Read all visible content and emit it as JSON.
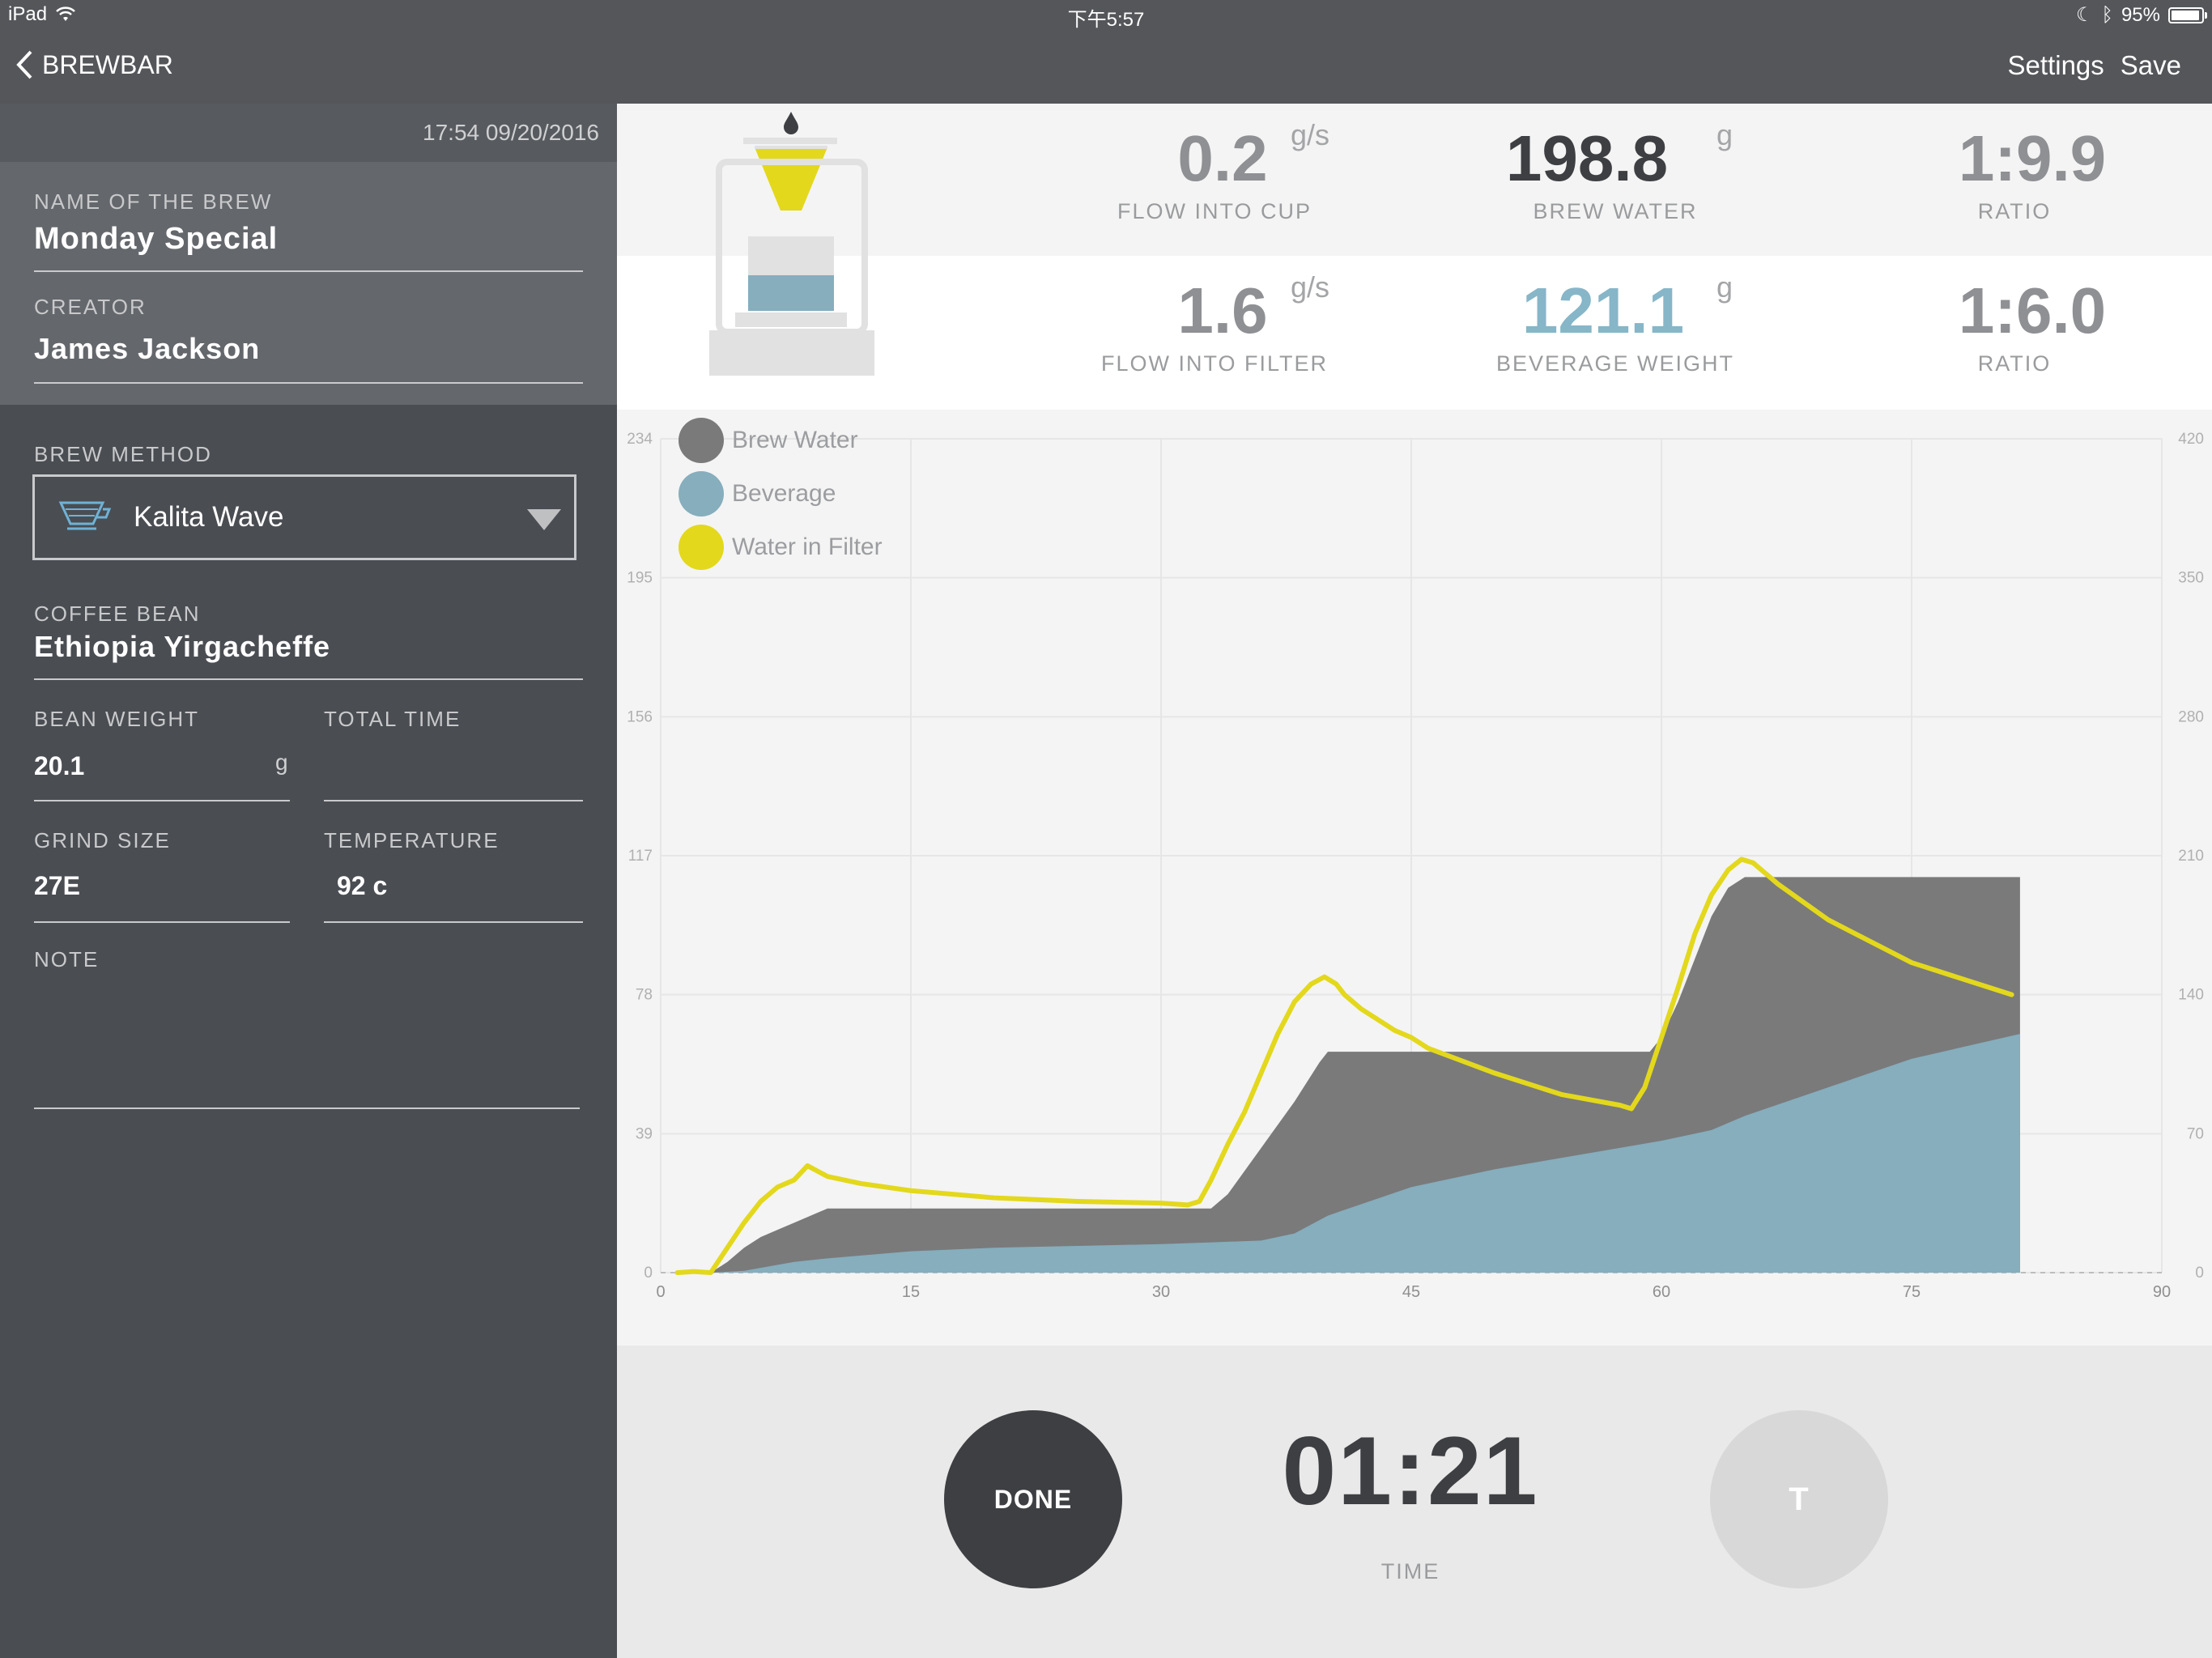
{
  "status_bar": {
    "device": "iPad",
    "time": "下午5:57",
    "battery": "95%",
    "battery_level": 0.95
  },
  "nav": {
    "back_label": "BREWBAR",
    "settings_label": "Settings",
    "save_label": "Save"
  },
  "sidebar": {
    "timestamp": "17:54 09/20/2016",
    "name_label": "NAME OF THE BREW",
    "name_value": "Monday Special",
    "creator_label": "CREATOR",
    "creator_value": "James Jackson",
    "method_label": "BREW METHOD",
    "method_value": "Kalita Wave",
    "bean_label": "COFFEE BEAN",
    "bean_value": "Ethiopia Yirgacheffe",
    "bean_weight_label": "BEAN WEIGHT",
    "bean_weight_value": "20.1",
    "bean_weight_unit": "g",
    "total_time_label": "TOTAL TIME",
    "total_time_value": "",
    "grind_label": "GRIND SIZE",
    "grind_value": "27E",
    "temp_label": "TEMPERATURE",
    "temp_value": "92 c",
    "note_label": "NOTE",
    "note_value": ""
  },
  "stats": {
    "flow_cup": {
      "value": "0.2",
      "unit": "g/s",
      "label": "FLOW INTO CUP"
    },
    "brew_water": {
      "value": "198.8",
      "unit": "g",
      "label": "BREW WATER"
    },
    "ratio_top": {
      "value": "1:9.9",
      "label": "RATIO"
    },
    "flow_filter": {
      "value": "1.6",
      "unit": "g/s",
      "label": "FLOW INTO FILTER"
    },
    "beverage_weight": {
      "value": "121.1",
      "unit": "g",
      "label": "BEVERAGE WEIGHT"
    },
    "ratio_bottom": {
      "value": "1:6.0",
      "label": "RATIO"
    }
  },
  "controls": {
    "done_label": "DONE",
    "timer": "01:21",
    "timer_label": "TIME",
    "t_label": "T"
  },
  "colors": {
    "brew_water": "#7a7a7b",
    "beverage": "#86aebd",
    "water_in_filter": "#e3d81c",
    "dark": "#3e3f42"
  },
  "chart_data": {
    "type": "area",
    "legend": [
      "Brew Water",
      "Beverage",
      "Water in Filter"
    ],
    "legend_position": "top-left",
    "x_ticks": [
      "0",
      "15",
      "30",
      "45",
      "60",
      "75",
      "90"
    ],
    "y_left_ticks": [
      "0",
      "39",
      "78",
      "117",
      "156",
      "195",
      "234"
    ],
    "y_right_ticks": [
      "0",
      "70",
      "140",
      "210",
      "280",
      "350",
      "420"
    ],
    "xlim": [
      0,
      90
    ],
    "ylim": [
      0,
      234
    ],
    "grid": true,
    "series": [
      {
        "name": "Brew Water",
        "type": "area",
        "x": [
          3,
          4,
          5,
          6,
          7,
          8,
          9.5,
          10,
          33,
          34,
          36,
          38,
          39.5,
          40,
          54,
          55,
          56,
          58,
          59.3,
          60,
          61,
          62,
          63,
          64,
          65,
          81.5
        ],
        "y": [
          0,
          3,
          7,
          10,
          12,
          14,
          17,
          18,
          18,
          22,
          35,
          48,
          59,
          62,
          62,
          62,
          62,
          62,
          62,
          66,
          76,
          88,
          100,
          108,
          111,
          111
        ]
      },
      {
        "name": "Beverage",
        "type": "area",
        "x": [
          3,
          5,
          8,
          10,
          15,
          20,
          25,
          30,
          33,
          36,
          38,
          40,
          45,
          50,
          55,
          60,
          63,
          65,
          70,
          75,
          81.5
        ],
        "y": [
          0,
          0.5,
          3,
          4,
          6,
          7,
          7.5,
          8,
          8.5,
          9,
          11,
          16,
          24,
          29,
          33,
          37,
          40,
          44,
          52,
          60,
          67
        ]
      },
      {
        "name": "Water in Filter",
        "type": "line",
        "x": [
          1,
          2,
          3,
          4,
          5,
          6,
          7,
          8,
          8.8,
          9.2,
          10,
          12,
          15,
          20,
          25,
          30,
          31.6,
          32.3,
          33,
          34,
          35,
          36,
          37,
          38,
          39,
          39.8,
          40.5,
          41,
          42,
          44,
          45,
          46,
          50,
          54,
          57.5,
          58.2,
          59,
          60,
          61,
          62,
          63,
          64,
          64.8,
          65.5,
          66,
          67,
          70,
          75,
          81
        ],
        "y": [
          0,
          0.3,
          0,
          7,
          14,
          20,
          24,
          26,
          30,
          29,
          27,
          25,
          23,
          21,
          20,
          19.5,
          19,
          20,
          26,
          36,
          45,
          56,
          67,
          76,
          81,
          83,
          81,
          78,
          74,
          68,
          66,
          63,
          56,
          50,
          47,
          46,
          52,
          66,
          80,
          95,
          106,
          113,
          116,
          115,
          113,
          109,
          99,
          87,
          78
        ]
      }
    ]
  }
}
